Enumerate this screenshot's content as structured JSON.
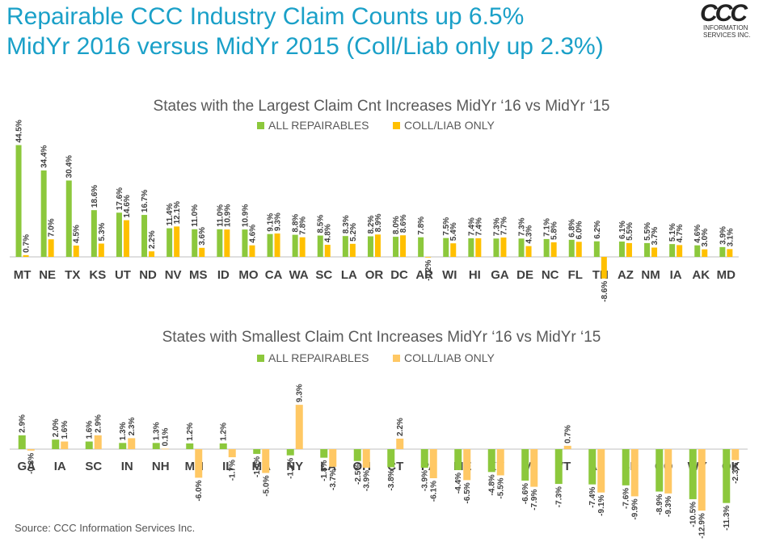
{
  "header": {
    "title_line1": "Repairable CCC Industry Claim Counts up 6.5%",
    "title_line2": "MidYr 2016 versus MidYr 2015 (Coll/Liab only up 2.3%)"
  },
  "logo": {
    "mark": "CCC",
    "line1": "INFORMATION",
    "line2": "SERVICES INC."
  },
  "colors": {
    "title": "#1aa0c8",
    "green": "#8cc83c",
    "yellow": "#ffc000",
    "light_yellow": "#ffc864",
    "axis": "#bfbfbf",
    "text": "#404040"
  },
  "chart_data": [
    {
      "type": "bar",
      "title": "States with the Largest Claim Cnt Increases MidYr ‘16 vs MidYr ‘15",
      "legend_position": "top-center",
      "categories": [
        "MT",
        "NE",
        "TX",
        "KS",
        "UT",
        "ND",
        "NV",
        "MS",
        "ID",
        "MO",
        "CA",
        "WA",
        "SC",
        "LA",
        "OR",
        "DC",
        "AR",
        "WI",
        "HI",
        "GA",
        "DE",
        "NC",
        "FL",
        "TN",
        "AZ",
        "NM",
        "IA",
        "AK",
        "MD"
      ],
      "series": [
        {
          "name": "ALL REPAIRABLES",
          "values": [
            44.5,
            34.4,
            30.4,
            18.6,
            17.6,
            16.7,
            11.4,
            11.0,
            11.0,
            10.9,
            9.1,
            8.8,
            8.5,
            8.3,
            8.2,
            8.0,
            7.8,
            7.5,
            7.4,
            7.3,
            7.3,
            7.1,
            6.8,
            6.2,
            6.1,
            5.5,
            5.1,
            4.6,
            3.9
          ]
        },
        {
          "name": "COLL/LIAB ONLY",
          "values": [
            0.7,
            7.0,
            4.5,
            5.3,
            14.6,
            2.2,
            12.1,
            3.6,
            10.9,
            4.6,
            9.3,
            7.8,
            4.8,
            5.2,
            8.9,
            8.6,
            -0.2,
            5.4,
            7.4,
            7.7,
            4.3,
            5.8,
            6.0,
            -8.6,
            5.5,
            3.7,
            4.7,
            3.0,
            3.1
          ]
        }
      ]
    },
    {
      "type": "bar",
      "title": "States with Smallest Claim Cnt Increases MidYr ‘16 vs MidYr ‘15",
      "legend_position": "top-center",
      "categories": [
        "GA",
        "IA",
        "SC",
        "IN",
        "NH",
        "MN",
        "IL",
        "MA",
        "NY",
        "LA",
        "OH",
        "CT",
        "PA",
        "ME",
        "KY",
        "MI",
        "VT",
        "AL",
        "SD",
        "CO",
        "WY",
        "OK"
      ],
      "series": [
        {
          "name": "ALL REPAIRABLES",
          "values": [
            2.9,
            2.0,
            1.6,
            1.3,
            1.3,
            1.2,
            1.2,
            -1.0,
            -1.3,
            -1.8,
            -2.5,
            -3.8,
            -3.9,
            -4.4,
            -4.8,
            -6.6,
            -7.3,
            -7.4,
            -7.6,
            -8.9,
            -10.5,
            -11.3
          ]
        },
        {
          "name": "COLL/LIAB ONLY",
          "values": [
            -0.3,
            1.6,
            2.9,
            2.3,
            0.1,
            -6.0,
            -1.7,
            -5.0,
            9.3,
            -3.7,
            -3.9,
            2.2,
            -6.1,
            -6.5,
            -5.5,
            -7.9,
            0.7,
            -9.1,
            -9.9,
            -9.3,
            -12.9,
            -2.3
          ]
        }
      ]
    }
  ],
  "footer": {
    "source": "Source: CCC Information Services Inc."
  }
}
